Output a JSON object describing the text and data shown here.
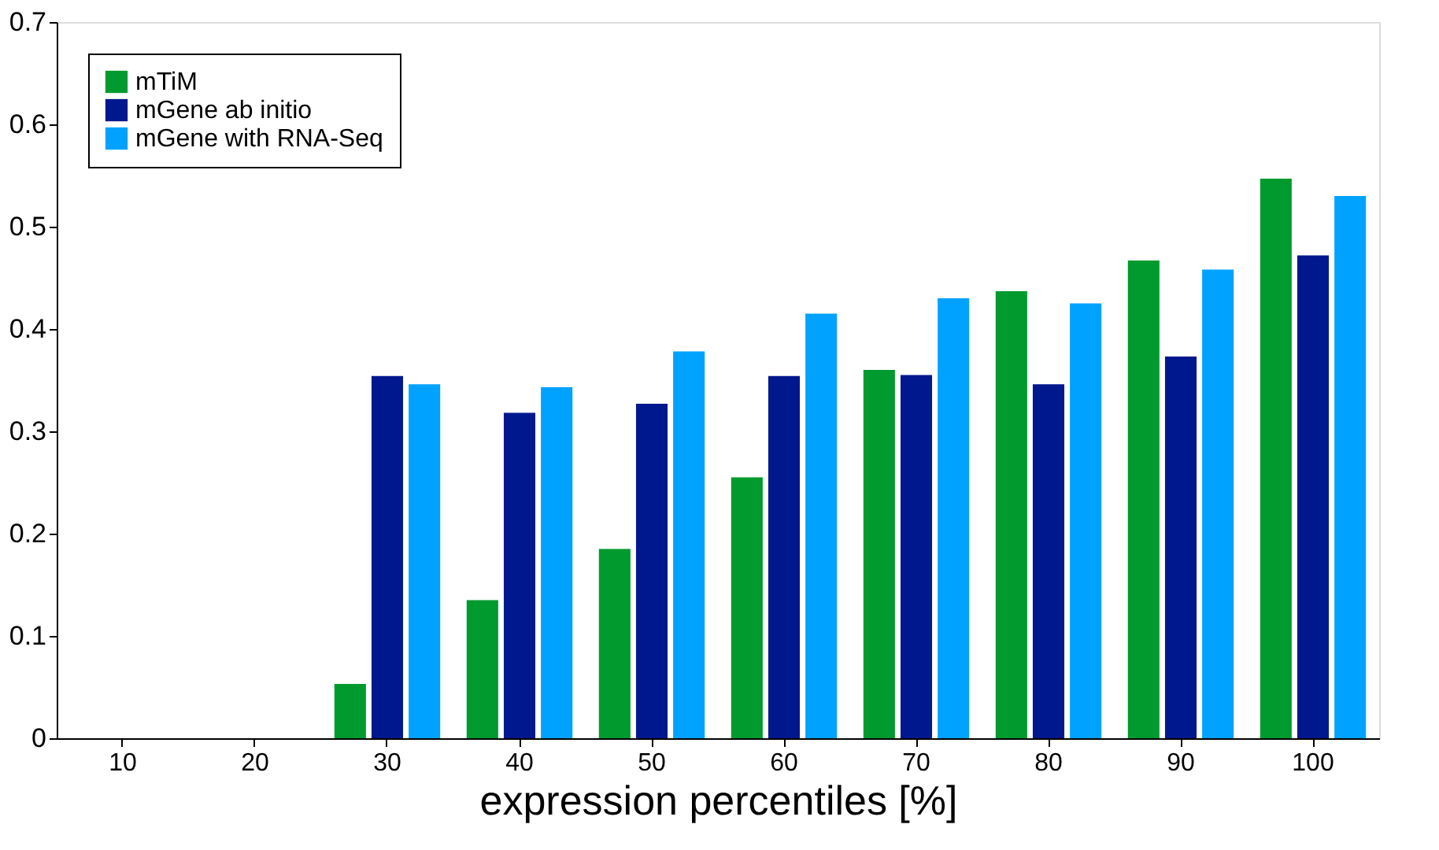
{
  "chart_data": {
    "type": "bar",
    "xlabel": "expression percentiles [%]",
    "categories": [
      "10",
      "20",
      "30",
      "40",
      "50",
      "60",
      "70",
      "80",
      "90",
      "100"
    ],
    "series": [
      {
        "name": "mTiM",
        "color": "#009a2e",
        "values": [
          0,
          0,
          0.053,
          0.135,
          0.185,
          0.255,
          0.36,
          0.437,
          0.467,
          0.547
        ]
      },
      {
        "name": "mGene ab initio",
        "color": "#00188d",
        "values": [
          0,
          0,
          0.354,
          0.318,
          0.327,
          0.354,
          0.355,
          0.346,
          0.373,
          0.472
        ]
      },
      {
        "name": "mGene with RNA-Seq",
        "color": "#00a2ff",
        "values": [
          0,
          0,
          0.346,
          0.343,
          0.378,
          0.415,
          0.43,
          0.425,
          0.458,
          0.53
        ]
      }
    ],
    "ylim": [
      0,
      0.7
    ],
    "yticks": [
      0,
      0.1,
      0.2,
      0.3,
      0.4,
      0.5,
      0.6,
      0.7
    ],
    "grid": false,
    "legend": "top left"
  }
}
